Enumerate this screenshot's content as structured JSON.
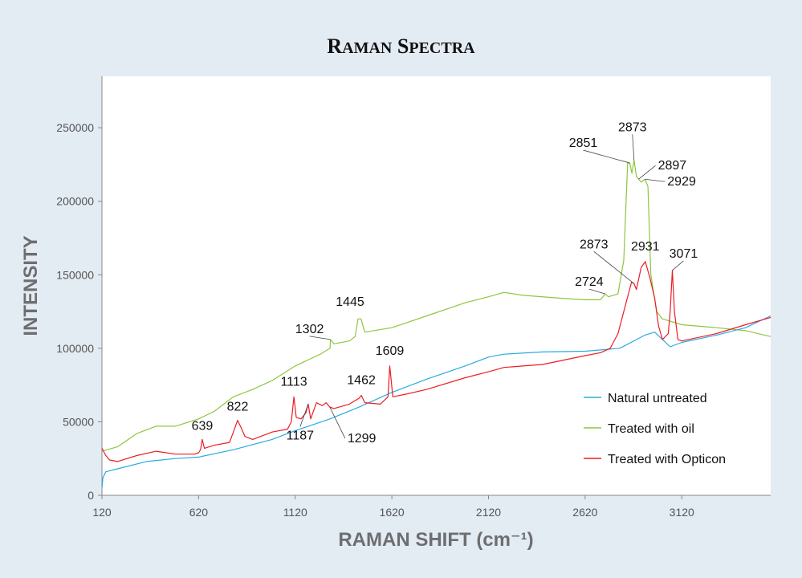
{
  "chart_data": {
    "type": "line",
    "title": "Raman Spectra",
    "xlabel": "RAMAN SHIFT (cm⁻¹)",
    "ylabel": "INTENSITY",
    "xlim": [
      120,
      3580
    ],
    "ylim": [
      0,
      285000
    ],
    "xticks": [
      120,
      620,
      1120,
      1620,
      2120,
      2620,
      3120
    ],
    "yticks": [
      0,
      50000,
      100000,
      150000,
      200000,
      250000
    ],
    "grid": false,
    "legend_position": "bottom-right",
    "series": [
      {
        "name": "Natural untreated",
        "color": "#29abe2",
        "points": [
          [
            120,
            5000
          ],
          [
            125,
            12000
          ],
          [
            140,
            16000
          ],
          [
            200,
            18000
          ],
          [
            350,
            23000
          ],
          [
            500,
            25000
          ],
          [
            620,
            26000
          ],
          [
            800,
            31000
          ],
          [
            1000,
            38000
          ],
          [
            1120,
            44000
          ],
          [
            1300,
            52000
          ],
          [
            1450,
            60000
          ],
          [
            1620,
            70000
          ],
          [
            1800,
            79000
          ],
          [
            2000,
            88000
          ],
          [
            2120,
            94000
          ],
          [
            2200,
            96000
          ],
          [
            2400,
            97500
          ],
          [
            2620,
            98000
          ],
          [
            2800,
            100000
          ],
          [
            2930,
            109000
          ],
          [
            2980,
            111000
          ],
          [
            3020,
            106000
          ],
          [
            3060,
            101000
          ],
          [
            3120,
            104000
          ],
          [
            3300,
            109000
          ],
          [
            3450,
            114000
          ],
          [
            3580,
            122000
          ]
        ]
      },
      {
        "name": "Treated with oil",
        "color": "#8dc63f",
        "points": [
          [
            120,
            30000
          ],
          [
            200,
            33000
          ],
          [
            300,
            42000
          ],
          [
            400,
            47000
          ],
          [
            500,
            47000
          ],
          [
            620,
            52000
          ],
          [
            700,
            57000
          ],
          [
            800,
            67000
          ],
          [
            900,
            72000
          ],
          [
            1000,
            78000
          ],
          [
            1120,
            88000
          ],
          [
            1250,
            96000
          ],
          [
            1300,
            100000
          ],
          [
            1302,
            106000
          ],
          [
            1320,
            103000
          ],
          [
            1400,
            105000
          ],
          [
            1430,
            108000
          ],
          [
            1445,
            120000
          ],
          [
            1460,
            120000
          ],
          [
            1480,
            111000
          ],
          [
            1620,
            114000
          ],
          [
            1800,
            122000
          ],
          [
            2000,
            131000
          ],
          [
            2120,
            135000
          ],
          [
            2200,
            138000
          ],
          [
            2300,
            136000
          ],
          [
            2500,
            134000
          ],
          [
            2620,
            133000
          ],
          [
            2700,
            133000
          ],
          [
            2724,
            137000
          ],
          [
            2740,
            135000
          ],
          [
            2790,
            137000
          ],
          [
            2820,
            160000
          ],
          [
            2840,
            226000
          ],
          [
            2851,
            226000
          ],
          [
            2862,
            219000
          ],
          [
            2873,
            228000
          ],
          [
            2885,
            217000
          ],
          [
            2897,
            215000
          ],
          [
            2910,
            213000
          ],
          [
            2929,
            215000
          ],
          [
            2945,
            210000
          ],
          [
            2960,
            150000
          ],
          [
            2990,
            125000
          ],
          [
            3020,
            120000
          ],
          [
            3120,
            116000
          ],
          [
            3300,
            114000
          ],
          [
            3450,
            112000
          ],
          [
            3580,
            108000
          ]
        ]
      },
      {
        "name": "Treated with Opticon",
        "color": "#ed1c24",
        "points": [
          [
            120,
            32000
          ],
          [
            140,
            27000
          ],
          [
            160,
            24000
          ],
          [
            200,
            23000
          ],
          [
            300,
            27000
          ],
          [
            400,
            30000
          ],
          [
            500,
            28000
          ],
          [
            600,
            28000
          ],
          [
            620,
            29000
          ],
          [
            630,
            31000
          ],
          [
            639,
            38000
          ],
          [
            650,
            32000
          ],
          [
            700,
            34000
          ],
          [
            780,
            36000
          ],
          [
            800,
            43000
          ],
          [
            822,
            51000
          ],
          [
            840,
            46000
          ],
          [
            860,
            40000
          ],
          [
            900,
            38000
          ],
          [
            1000,
            43000
          ],
          [
            1080,
            45000
          ],
          [
            1100,
            50000
          ],
          [
            1113,
            67000
          ],
          [
            1125,
            53000
          ],
          [
            1150,
            52000
          ],
          [
            1175,
            56000
          ],
          [
            1187,
            62000
          ],
          [
            1200,
            52000
          ],
          [
            1230,
            63000
          ],
          [
            1260,
            61000
          ],
          [
            1280,
            63000
          ],
          [
            1299,
            60000
          ],
          [
            1320,
            59000
          ],
          [
            1400,
            62000
          ],
          [
            1450,
            66000
          ],
          [
            1462,
            68000
          ],
          [
            1480,
            63000
          ],
          [
            1560,
            62000
          ],
          [
            1600,
            67000
          ],
          [
            1609,
            88000
          ],
          [
            1625,
            67000
          ],
          [
            1700,
            69000
          ],
          [
            1800,
            72000
          ],
          [
            2000,
            80000
          ],
          [
            2120,
            84000
          ],
          [
            2200,
            87000
          ],
          [
            2400,
            89000
          ],
          [
            2620,
            95000
          ],
          [
            2700,
            97000
          ],
          [
            2750,
            100000
          ],
          [
            2790,
            110000
          ],
          [
            2830,
            130000
          ],
          [
            2860,
            145000
          ],
          [
            2873,
            144000
          ],
          [
            2885,
            140000
          ],
          [
            2910,
            155000
          ],
          [
            2931,
            159000
          ],
          [
            2955,
            148000
          ],
          [
            2980,
            134000
          ],
          [
            3000,
            115000
          ],
          [
            3020,
            106000
          ],
          [
            3050,
            110000
          ],
          [
            3060,
            125000
          ],
          [
            3071,
            153000
          ],
          [
            3082,
            125000
          ],
          [
            3100,
            106000
          ],
          [
            3120,
            105000
          ],
          [
            3300,
            110000
          ],
          [
            3450,
            116000
          ],
          [
            3580,
            121000
          ]
        ]
      }
    ],
    "annotations": [
      {
        "text": "639",
        "x": 639,
        "y": 38000
      },
      {
        "text": "822",
        "x": 822,
        "y": 51000
      },
      {
        "text": "1113",
        "x": 1113,
        "y": 67000
      },
      {
        "text": "1187",
        "x": 1187,
        "y": 62000
      },
      {
        "text": "1299",
        "x": 1299,
        "y": 60000
      },
      {
        "text": "1462",
        "x": 1462,
        "y": 68000
      },
      {
        "text": "1609",
        "x": 1609,
        "y": 88000
      },
      {
        "text": "1302",
        "x": 1302,
        "y": 106000
      },
      {
        "text": "1445",
        "x": 1445,
        "y": 120000
      },
      {
        "text": "2724",
        "x": 2724,
        "y": 137000
      },
      {
        "text": "2873",
        "x": 2873,
        "y": 144000
      },
      {
        "text": "2931",
        "x": 2931,
        "y": 159000
      },
      {
        "text": "3071",
        "x": 3071,
        "y": 153000
      },
      {
        "text": "2851",
        "x": 2851,
        "y": 226000
      },
      {
        "text": "2873",
        "x": 2873,
        "y": 228000
      },
      {
        "text": "2897",
        "x": 2897,
        "y": 215000
      },
      {
        "text": "2929",
        "x": 2929,
        "y": 215000
      }
    ]
  }
}
